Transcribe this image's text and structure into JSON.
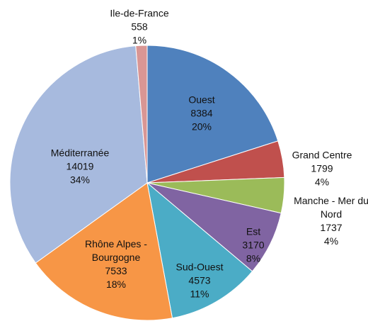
{
  "chart_data": {
    "type": "pie",
    "categories": [
      "Ouest",
      "Grand Centre",
      "Manche - Mer du Nord",
      "Est",
      "Sud-Ouest",
      "Rhône Alpes - Bourgogne",
      "Méditerranée",
      "Ile-de-France"
    ],
    "values": [
      8384,
      1799,
      1737,
      3170,
      4573,
      7533,
      14019,
      558
    ],
    "percent_labels": [
      "20%",
      "4%",
      "4%",
      "8%",
      "11%",
      "18%",
      "34%",
      "1%"
    ],
    "colors": [
      "#4f81bd",
      "#c0504d",
      "#9bbb59",
      "#8064a2",
      "#4bacc6",
      "#f79646",
      "#a7bade",
      "#d99694"
    ]
  }
}
